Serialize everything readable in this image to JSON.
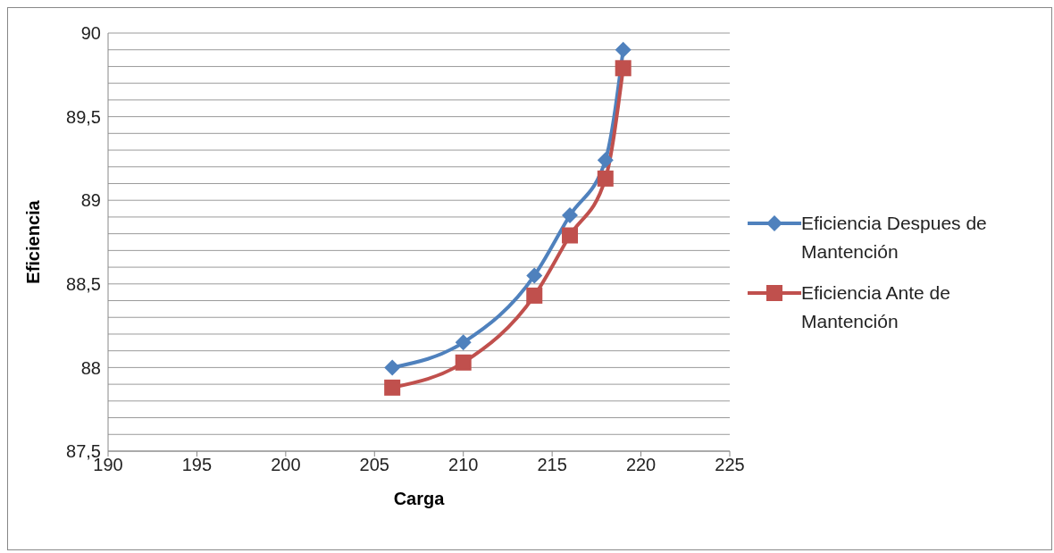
{
  "chart_data": {
    "type": "line",
    "xlabel": "Carga",
    "ylabel": "Eficiencia",
    "xlim": [
      190,
      225
    ],
    "xticks": [
      190,
      195,
      200,
      205,
      210,
      215,
      220,
      225
    ],
    "ylim": [
      87.5,
      90
    ],
    "yticks": [
      {
        "value": 87.5,
        "label": "87,5"
      },
      {
        "value": 87.6,
        "label": null
      },
      {
        "value": 87.7,
        "label": null
      },
      {
        "value": 87.8,
        "label": null
      },
      {
        "value": 87.9,
        "label": null
      },
      88,
      {
        "value": 88.1,
        "label": null
      },
      {
        "value": 88.2,
        "label": null
      },
      {
        "value": 88.3,
        "label": null
      },
      {
        "value": 88.4,
        "label": null
      },
      {
        "value": 88.5,
        "label": "88,5"
      },
      {
        "value": 88.6,
        "label": null
      },
      {
        "value": 88.7,
        "label": null
      },
      {
        "value": 88.8,
        "label": null
      },
      {
        "value": 88.9,
        "label": null
      },
      89,
      {
        "value": 89.1,
        "label": null
      },
      {
        "value": 89.2,
        "label": null
      },
      {
        "value": 89.3,
        "label": null
      },
      {
        "value": 89.4,
        "label": null
      },
      {
        "value": 89.5,
        "label": "89,5"
      },
      {
        "value": 89.6,
        "label": null
      },
      {
        "value": 89.7,
        "label": null
      },
      {
        "value": 89.8,
        "label": null
      },
      {
        "value": 89.9,
        "label": null
      },
      90
    ],
    "grid": "y",
    "legend": "right",
    "line_style": "solid",
    "x": [
      206,
      210,
      214,
      216,
      218,
      219
    ],
    "series": [
      {
        "name": "Eficiencia Despues de Mantención",
        "color": "#4f81bd",
        "marker": "diamond",
        "values": [
          88.0,
          88.15,
          88.55,
          88.91,
          89.24,
          89.9
        ]
      },
      {
        "name": "Eficiencia Ante de Mantención",
        "color": "#c0504d",
        "marker": "square",
        "values": [
          87.88,
          88.03,
          88.43,
          88.79,
          89.13,
          89.79
        ]
      }
    ]
  }
}
